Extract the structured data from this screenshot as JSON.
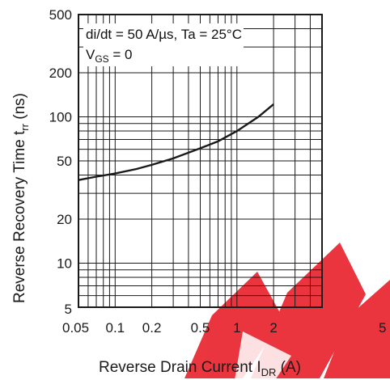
{
  "chart_data": {
    "type": "line",
    "x_scale": "log",
    "y_scale": "log",
    "xlim": [
      0.05,
      5
    ],
    "ylim": [
      5,
      500
    ],
    "grid": true,
    "x_tick_labels": [
      "0.05",
      "0.1",
      "0.2",
      "0.5",
      "1",
      "2",
      "5"
    ],
    "x_ticks": [
      0.05,
      0.1,
      0.2,
      0.5,
      1,
      2,
      5
    ],
    "y_tick_labels": [
      "5",
      "10",
      "20",
      "50",
      "100",
      "200",
      "500"
    ],
    "y_ticks": [
      5,
      10,
      20,
      50,
      100,
      200,
      500
    ],
    "xlabel": {
      "text": "Reverse Drain Current  I",
      "sub": "DR",
      "unit": "  (A)"
    },
    "ylabel": {
      "text": "Reverse Recovery Time  t",
      "sub": "rr",
      "unit": "  (ns)"
    },
    "annotations": {
      "line1": "di/dt = 50 A/µs, Ta = 25°C",
      "line2_main": "V",
      "line2_sub": "GS",
      "line2_rest": " = 0"
    },
    "series": [
      {
        "x": [
          0.05,
          0.07,
          0.1,
          0.15,
          0.2,
          0.3,
          0.5,
          0.7,
          1.0,
          1.5,
          2.0
        ],
        "y": [
          37,
          39,
          41,
          44,
          47,
          52,
          61,
          68,
          80,
          100,
          122
        ]
      }
    ],
    "colors": {
      "line": "#1a1a1a",
      "grid": "#1a1a1a",
      "watermark": "#e8202a"
    }
  }
}
